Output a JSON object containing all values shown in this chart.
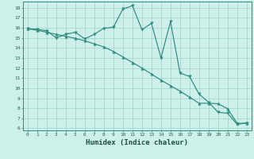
{
  "line1_x": [
    0,
    1,
    2,
    3,
    4,
    5,
    6,
    7,
    8,
    9,
    10,
    11,
    12,
    13,
    14,
    15,
    16,
    17,
    18,
    19,
    20,
    21,
    22,
    23
  ],
  "line1_y": [
    15.9,
    15.85,
    15.7,
    15.0,
    15.35,
    15.55,
    14.9,
    15.35,
    15.95,
    16.05,
    17.85,
    18.2,
    15.8,
    16.45,
    13.0,
    16.6,
    11.5,
    11.15,
    9.4,
    8.6,
    7.6,
    7.5,
    6.4,
    6.55
  ],
  "line2_x": [
    0,
    1,
    2,
    3,
    4,
    5,
    6,
    7,
    8,
    9,
    10,
    11,
    12,
    13,
    14,
    15,
    16,
    17,
    18,
    19,
    20,
    21,
    22,
    23
  ],
  "line2_y": [
    15.9,
    15.75,
    15.55,
    15.35,
    15.15,
    14.95,
    14.7,
    14.4,
    14.1,
    13.65,
    13.1,
    12.55,
    12.0,
    11.4,
    10.8,
    10.25,
    9.7,
    9.1,
    8.5,
    8.5,
    8.45,
    7.95,
    6.5,
    6.5
  ],
  "line_color": "#2e8b7a",
  "bg_color": "#cef0ea",
  "grid_color": "#9dd4c8",
  "xlabel": "Humidex (Indice chaleur)",
  "ylim": [
    5.8,
    18.6
  ],
  "xlim": [
    -0.5,
    23.5
  ],
  "yticks": [
    6,
    7,
    8,
    9,
    10,
    11,
    12,
    13,
    14,
    15,
    16,
    17,
    18
  ],
  "xticks": [
    0,
    1,
    2,
    3,
    4,
    5,
    6,
    7,
    8,
    9,
    10,
    11,
    12,
    13,
    14,
    15,
    16,
    17,
    18,
    19,
    20,
    21,
    22,
    23
  ],
  "tick_fontsize": 4.5,
  "xlabel_fontsize": 6.5,
  "lw": 0.85,
  "markersize": 2.5
}
